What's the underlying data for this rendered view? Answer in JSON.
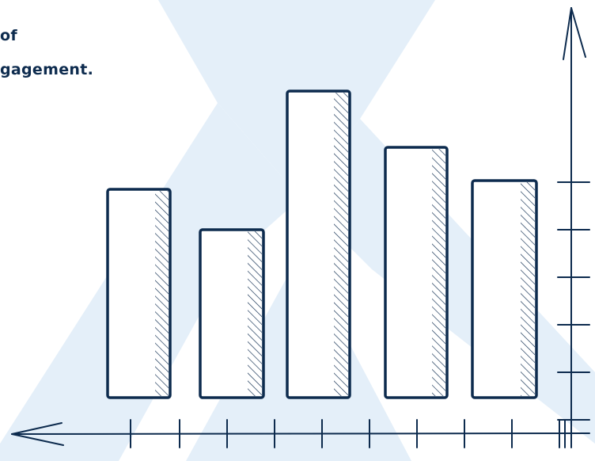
{
  "text": {
    "line1": "of",
    "line2": "gagement."
  }
}
